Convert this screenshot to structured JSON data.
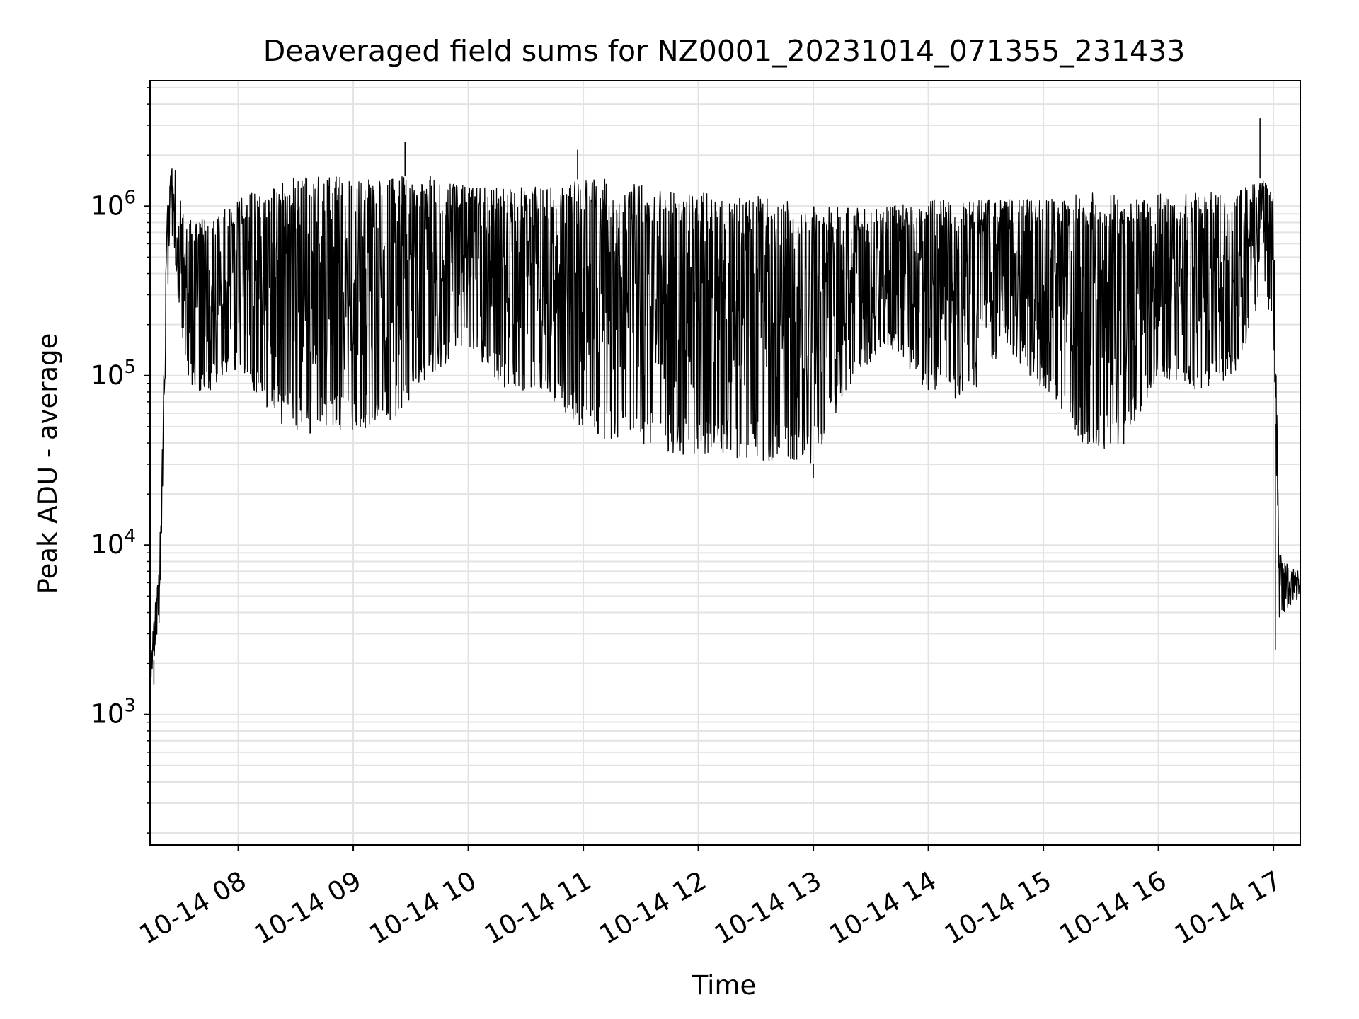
{
  "chart_data": {
    "type": "line",
    "title": "Deaveraged field sums for NZ0001_20231014_071355_231433",
    "xlabel": "Time",
    "ylabel": "Peak ADU - average",
    "yscale": "log",
    "ylim": [
      170,
      5500000
    ],
    "xlim": [
      "2023-10-14 07:14",
      "2023-10-14 17:14"
    ],
    "grid": true,
    "x_ticks": [
      {
        "t": "2023-10-14 08:00",
        "label": "10-14 08"
      },
      {
        "t": "2023-10-14 09:00",
        "label": "10-14 09"
      },
      {
        "t": "2023-10-14 10:00",
        "label": "10-14 10"
      },
      {
        "t": "2023-10-14 11:00",
        "label": "10-14 11"
      },
      {
        "t": "2023-10-14 12:00",
        "label": "10-14 12"
      },
      {
        "t": "2023-10-14 13:00",
        "label": "10-14 13"
      },
      {
        "t": "2023-10-14 14:00",
        "label": "10-14 14"
      },
      {
        "t": "2023-10-14 15:00",
        "label": "10-14 15"
      },
      {
        "t": "2023-10-14 16:00",
        "label": "10-14 16"
      },
      {
        "t": "2023-10-14 17:00",
        "label": "10-14 17"
      }
    ],
    "y_ticks": [
      {
        "value": 1000,
        "base": "10",
        "exp": "3"
      },
      {
        "value": 10000,
        "base": "10",
        "exp": "4"
      },
      {
        "value": 100000,
        "base": "10",
        "exp": "5"
      },
      {
        "value": 1000000,
        "base": "10",
        "exp": "6"
      }
    ],
    "series_color": "#000000",
    "envelope": {
      "times": [
        "2023-10-14 07:14",
        "2023-10-14 07:19",
        "2023-10-14 07:23",
        "2023-10-14 07:26",
        "2023-10-14 07:29",
        "2023-10-14 07:33",
        "2023-10-14 07:37",
        "2023-10-14 07:45",
        "2023-10-14 07:55",
        "2023-10-14 08:00",
        "2023-10-14 08:15",
        "2023-10-14 08:30",
        "2023-10-14 08:45",
        "2023-10-14 09:00",
        "2023-10-14 09:20",
        "2023-10-14 09:40",
        "2023-10-14 10:00",
        "2023-10-14 10:20",
        "2023-10-14 10:40",
        "2023-10-14 10:55",
        "2023-10-14 11:00",
        "2023-10-14 11:20",
        "2023-10-14 11:40",
        "2023-10-14 12:00",
        "2023-10-14 12:20",
        "2023-10-14 12:40",
        "2023-10-14 13:00",
        "2023-10-14 13:20",
        "2023-10-14 13:40",
        "2023-10-14 14:00",
        "2023-10-14 14:20",
        "2023-10-14 14:40",
        "2023-10-14 15:00",
        "2023-10-14 15:20",
        "2023-10-14 15:40",
        "2023-10-14 16:00",
        "2023-10-14 16:20",
        "2023-10-14 16:40",
        "2023-10-14 16:55",
        "2023-10-14 17:00",
        "2023-10-14 17:03",
        "2023-10-14 17:06",
        "2023-10-14 17:14"
      ],
      "high": [
        2000,
        9000,
        1000000,
        2100000,
        1200000,
        1000000,
        900000,
        800000,
        1000000,
        1100000,
        1300000,
        1500000,
        1500000,
        1500000,
        1500000,
        1500000,
        1300000,
        1300000,
        1300000,
        1400000,
        1500000,
        1400000,
        1300000,
        1200000,
        1200000,
        1100000,
        1000000,
        1000000,
        1000000,
        1100000,
        1100000,
        1100000,
        1100000,
        1200000,
        1200000,
        1200000,
        1200000,
        1200000,
        1500000,
        1100000,
        9000,
        8000,
        7000
      ],
      "low": [
        1500,
        3500,
        300000,
        700000,
        250000,
        100000,
        80000,
        80000,
        100000,
        100000,
        60000,
        45000,
        45000,
        45000,
        50000,
        100000,
        150000,
        80000,
        80000,
        50000,
        45000,
        40000,
        35000,
        33000,
        32000,
        31000,
        30000,
        90000,
        150000,
        80000,
        70000,
        150000,
        80000,
        40000,
        35000,
        100000,
        80000,
        100000,
        300000,
        200000,
        3500,
        4000,
        5000
      ]
    },
    "notable_points": [
      {
        "t": "2023-10-14 07:16",
        "y": 1500
      },
      {
        "t": "2023-10-14 09:27",
        "y": 2400000
      },
      {
        "t": "2023-10-14 10:57",
        "y": 2150000
      },
      {
        "t": "2023-10-14 16:53",
        "y": 3300000
      },
      {
        "t": "2023-10-14 13:00",
        "y": 25000
      },
      {
        "t": "2023-10-14 17:01",
        "y": 2400
      }
    ]
  }
}
